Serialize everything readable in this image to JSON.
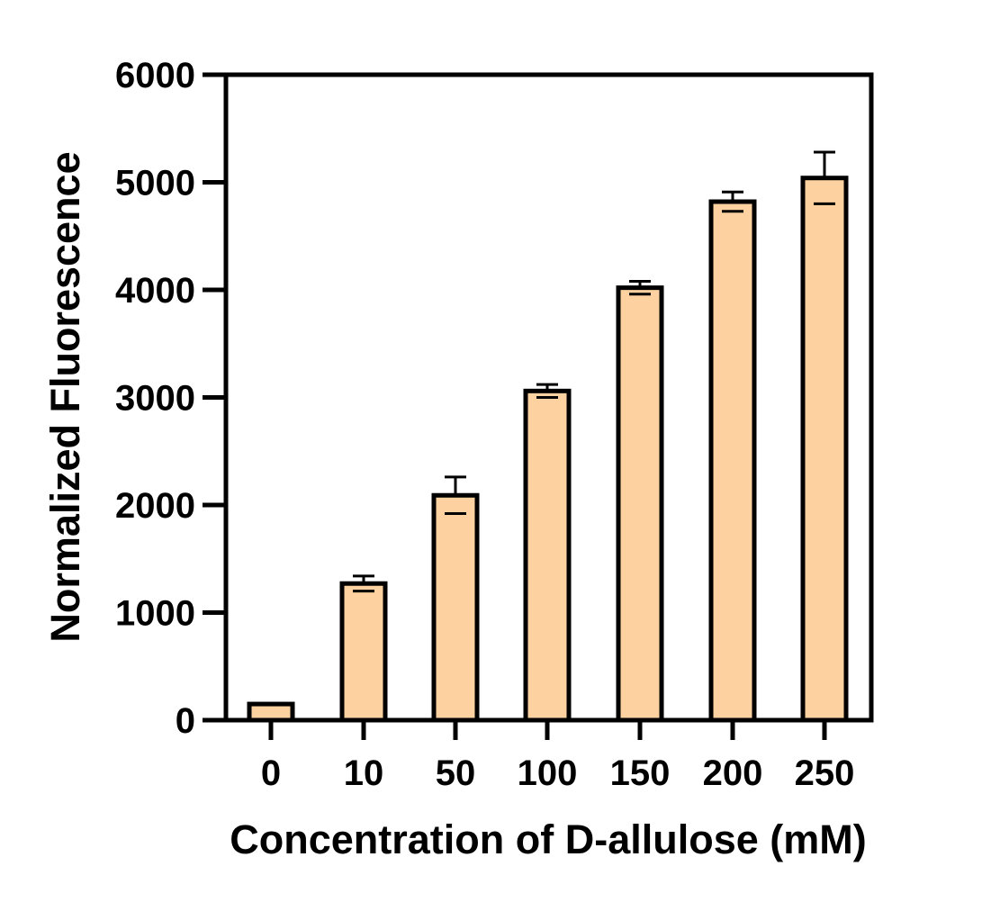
{
  "chart_data": {
    "type": "bar",
    "title": "",
    "xlabel": "Concentration of D-allulose (mM)",
    "ylabel": "Normalized Fluorescence",
    "categories": [
      "0",
      "10",
      "50",
      "100",
      "150",
      "200",
      "250"
    ],
    "values": [
      150,
      1270,
      2090,
      3060,
      4020,
      4820,
      5040
    ],
    "errors": [
      0,
      70,
      170,
      60,
      60,
      90,
      240
    ],
    "ylim": [
      0,
      6000
    ],
    "yticks": [
      0,
      1000,
      2000,
      3000,
      4000,
      5000,
      6000
    ],
    "ytick_labels": [
      "0",
      "1000",
      "2000",
      "3000",
      "4000",
      "5000",
      "6000"
    ],
    "grid": false,
    "legend": "none",
    "colors": {
      "bar_fill": "#FDD2A0",
      "bar_stroke": "#000000",
      "axis": "#000000"
    }
  }
}
